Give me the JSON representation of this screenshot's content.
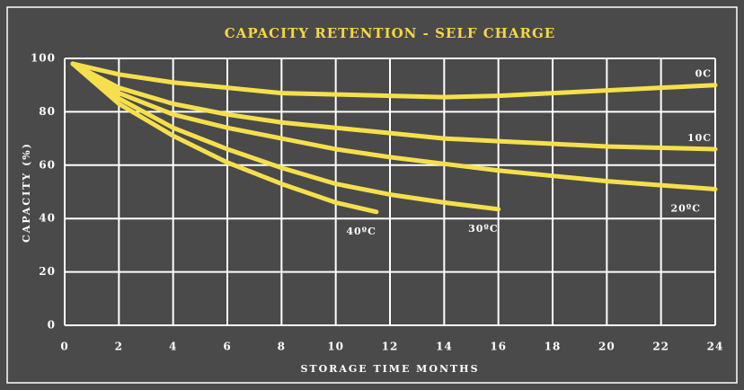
{
  "chart_data": {
    "type": "line",
    "title": "CAPACITY RETENTION - SELF CHARGE",
    "xlabel": "STORAGE TIME MONTHS",
    "ylabel": "CAPACITY (%)",
    "xlim": [
      0,
      24
    ],
    "ylim": [
      0,
      100
    ],
    "xticks": [
      0,
      2,
      4,
      6,
      8,
      10,
      12,
      14,
      16,
      18,
      20,
      22,
      24
    ],
    "yticks": [
      0,
      20,
      40,
      60,
      80,
      100
    ],
    "grid": true,
    "series": [
      {
        "name": "0C",
        "color": "#f6df4c",
        "x": [
          0.3,
          2,
          4,
          6,
          8,
          10,
          12,
          14,
          16,
          18,
          20,
          22,
          24
        ],
        "values": [
          98,
          94,
          91,
          89,
          87,
          86.5,
          86,
          85.5,
          86,
          87,
          88,
          89,
          90
        ]
      },
      {
        "name": "10C",
        "color": "#f6df4c",
        "x": [
          0.3,
          2,
          4,
          6,
          8,
          10,
          12,
          14,
          16,
          18,
          20,
          22,
          24
        ],
        "values": [
          98,
          89,
          83,
          79,
          76,
          74,
          72,
          70,
          69,
          68,
          67,
          66.5,
          66
        ]
      },
      {
        "name": "20ºC",
        "color": "#f6df4c",
        "x": [
          0.3,
          2,
          4,
          6,
          8,
          10,
          12,
          14,
          16,
          18,
          20,
          22,
          24
        ],
        "values": [
          98,
          87,
          79,
          74,
          70,
          66,
          63,
          60.5,
          58,
          56,
          54,
          52.5,
          51
        ]
      },
      {
        "name": "30ºC",
        "color": "#f6df4c",
        "x": [
          0.3,
          2,
          4,
          6,
          8,
          10,
          12,
          14,
          16
        ],
        "values": [
          98,
          85,
          74,
          66,
          59,
          53,
          49,
          46,
          43.5
        ]
      },
      {
        "name": "40ºC",
        "color": "#f6df4c",
        "x": [
          0.3,
          2,
          4,
          6,
          8,
          10,
          11.5
        ],
        "values": [
          98,
          83,
          71,
          61,
          53,
          46,
          42.5
        ]
      }
    ]
  }
}
